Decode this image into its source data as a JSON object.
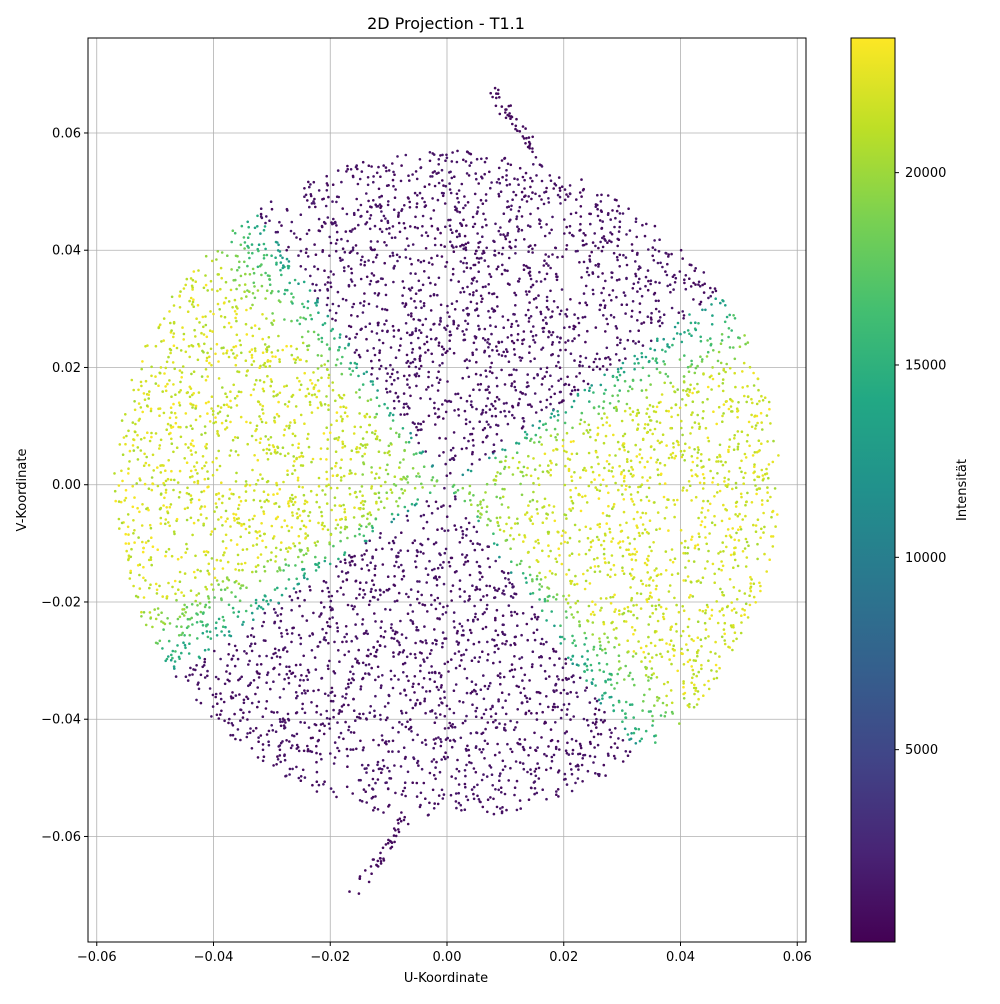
{
  "chart_data": {
    "type": "scatter",
    "title": "2D Projection - T1.1",
    "xlabel": "U-Koordinate",
    "ylabel": "V-Koordinate",
    "xlim": [
      -0.0615,
      0.0615
    ],
    "ylim": [
      -0.078,
      0.0762
    ],
    "xticks": [
      -0.06,
      -0.04,
      -0.02,
      0.0,
      0.02,
      0.04,
      0.06
    ],
    "xtick_labels": [
      "−0.06",
      "−0.04",
      "−0.02",
      "0.00",
      "0.02",
      "0.04",
      "0.06"
    ],
    "yticks": [
      -0.06,
      -0.04,
      -0.02,
      0.0,
      0.02,
      0.04,
      0.06
    ],
    "ytick_labels": [
      "−0.06",
      "−0.04",
      "−0.02",
      "0.00",
      "0.02",
      "0.04",
      "0.06"
    ],
    "grid": true,
    "point_cloud": {
      "shape": "disc",
      "center": [
        0.0,
        0.0
      ],
      "radius": 0.057,
      "high_intensity_sectors": "bow-tie lobes centered on the U axis, edges at roughly 125°/−145° (left) and 35°/−55° (right)",
      "low_intensity_sectors": "top and bottom wedges",
      "tails": "small stray tails near (0.01, 0.065) and (−0.012, −0.068)"
    },
    "colorbar": {
      "label": "Intensität",
      "colormap": "viridis",
      "range": [
        0,
        23500
      ],
      "ticks": [
        5000,
        10000,
        15000,
        20000
      ],
      "tick_labels": [
        "5000",
        "10000",
        "15000",
        "20000"
      ]
    }
  }
}
